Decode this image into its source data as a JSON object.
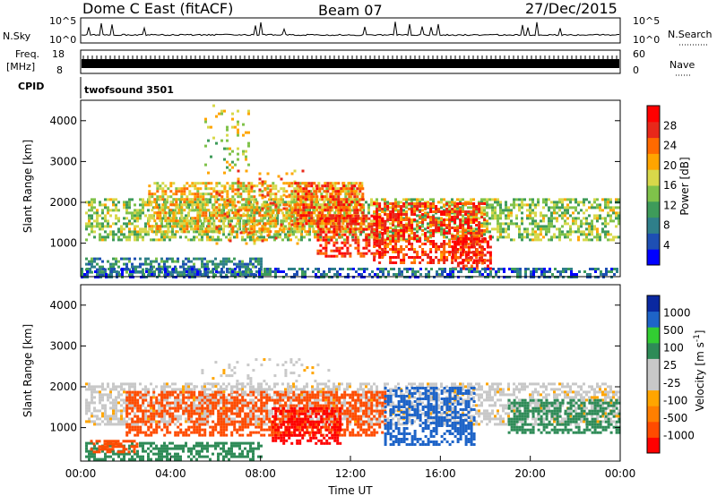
{
  "header": {
    "station": "Dome C East (fitACF)",
    "beam": "Beam 07",
    "date": "27/Dec/2015"
  },
  "noise_panel": {
    "left_label": "N.Sky",
    "right_label": "N.Search",
    "left_ticks": [
      "10^5",
      "10^0"
    ],
    "right_ticks": [
      "10^5",
      "10^0"
    ]
  },
  "freq_panel": {
    "left_label_line1": "Freq.",
    "left_label_line2": "[MHz]",
    "right_label": "Nave",
    "left_ticks": [
      "18",
      "8"
    ],
    "right_ticks": [
      "60",
      "0"
    ]
  },
  "cpid_panel": {
    "label": "CPID",
    "value": "twofsound 3501"
  },
  "colors": {
    "power_scale": [
      "#0000ff",
      "#1e4fb4",
      "#2f7f8a",
      "#3e9b5a",
      "#7fc24a",
      "#d8d84a",
      "#ffa500",
      "#ff6a00",
      "#e8281a",
      "#ff0000"
    ],
    "velocity_scale": [
      "#ff0000",
      "#ff4b00",
      "#ff7f00",
      "#ffa500",
      "#c8c8c8",
      "#c8c8c8",
      "#2e8b57",
      "#32cd32",
      "#1e64c8",
      "#0a28a0"
    ],
    "ground_scatter": "#888888"
  },
  "chart_data": [
    {
      "type": "heatmap",
      "name": "power",
      "xlabel": "",
      "ylabel": "Slant Range [km]",
      "yticks": [
        "1000",
        "2000",
        "3000",
        "4000"
      ],
      "ylim": [
        180,
        4500
      ],
      "xlim": [
        "00:00",
        "24:00"
      ],
      "colorbar": {
        "label": "Power [dB]",
        "ticks": [
          "4",
          "8",
          "12",
          "16",
          "20",
          "24",
          "28"
        ],
        "range": [
          0,
          30
        ]
      },
      "echo_regions": [
        {
          "t": [
            0.2,
            24.0
          ],
          "r": [
            1100,
            2100
          ],
          "value": 14
        },
        {
          "t": [
            3.0,
            12.5
          ],
          "r": [
            1300,
            2500
          ],
          "value": 18
        },
        {
          "t": [
            6.0,
            10.0
          ],
          "r": [
            1000,
            2800
          ],
          "value": 22
        },
        {
          "t": [
            9.5,
            12.5
          ],
          "r": [
            1500,
            2500
          ],
          "value": 24
        },
        {
          "t": [
            10.5,
            13.5
          ],
          "r": [
            700,
            1700
          ],
          "value": 26
        },
        {
          "t": [
            13.0,
            18.0
          ],
          "r": [
            500,
            2000
          ],
          "value": 25
        },
        {
          "t": [
            16.5,
            18.2
          ],
          "r": [
            400,
            1200
          ],
          "value": 27
        },
        {
          "t": [
            0.2,
            8.0
          ],
          "r": [
            250,
            650
          ],
          "value": 8
        },
        {
          "t": [
            0.0,
            24.0
          ],
          "r": [
            200,
            400
          ],
          "value": 6
        },
        {
          "t": [
            5.5,
            7.5
          ],
          "r": [
            2700,
            4400
          ],
          "value": 16
        }
      ]
    },
    {
      "type": "heatmap",
      "name": "velocity",
      "xlabel": "Time UT",
      "ylabel": "Slant Range [km]",
      "xticks": [
        "00:00",
        "04:00",
        "08:00",
        "12:00",
        "16:00",
        "20:00",
        "00:00"
      ],
      "yticks": [
        "1000",
        "2000",
        "3000",
        "4000"
      ],
      "ylim": [
        180,
        4500
      ],
      "xlim": [
        "00:00",
        "24:00"
      ],
      "colorbar": {
        "label": "Velocity [m s^-1]",
        "ticks": [
          "-1000",
          "-500",
          "-100",
          "-25",
          "25",
          "100",
          "500",
          "1000"
        ]
      },
      "echo_regions": [
        {
          "t": [
            0.2,
            24.0
          ],
          "r": [
            1100,
            2100
          ],
          "value": 0
        },
        {
          "t": [
            2.0,
            13.5
          ],
          "r": [
            800,
            1900
          ],
          "value": -250
        },
        {
          "t": [
            8.5,
            11.5
          ],
          "r": [
            600,
            1500
          ],
          "value": -400
        },
        {
          "t": [
            13.5,
            17.5
          ],
          "r": [
            600,
            2000
          ],
          "value": 150
        },
        {
          "t": [
            19.0,
            24.0
          ],
          "r": [
            900,
            1700
          ],
          "value": 60
        },
        {
          "t": [
            0.2,
            8.0
          ],
          "r": [
            250,
            650
          ],
          "value": 80
        },
        {
          "t": [
            0.3,
            2.5
          ],
          "r": [
            400,
            700
          ],
          "value": -200
        },
        {
          "t": [
            5.0,
            11.0
          ],
          "r": [
            1800,
            2700
          ],
          "value": 0
        }
      ]
    }
  ]
}
